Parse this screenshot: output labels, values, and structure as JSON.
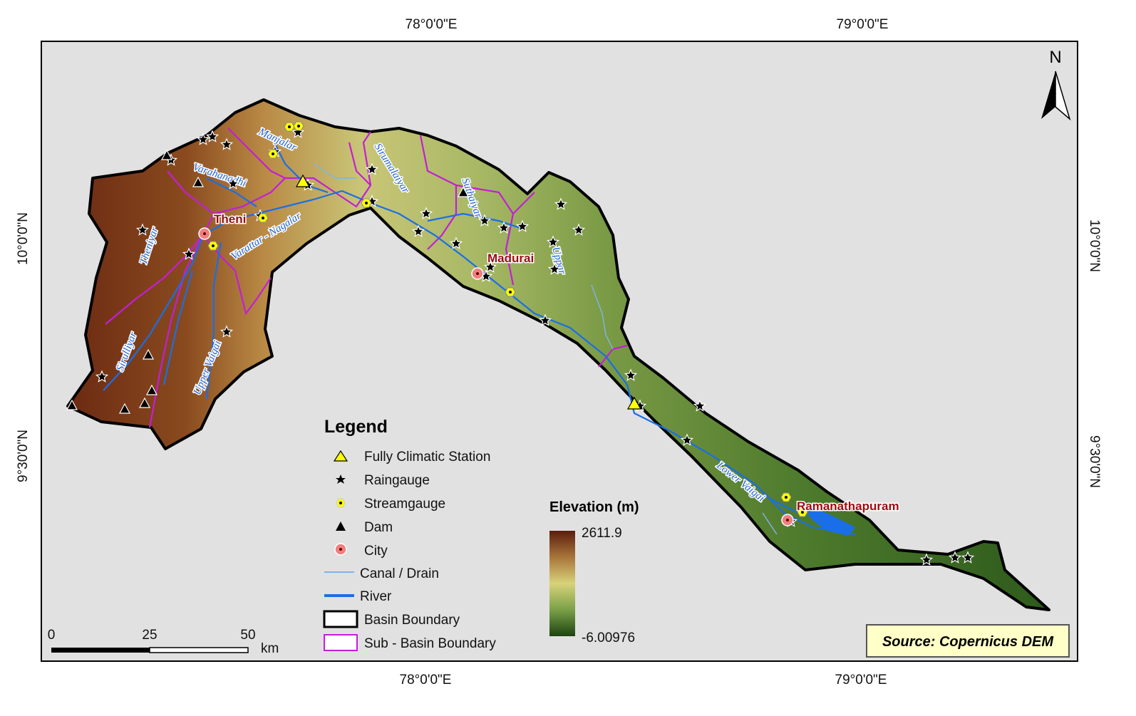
{
  "map": {
    "graticule": {
      "top": [
        "78°0'0\"E",
        "79°0'0\"E"
      ],
      "bottom": [
        "78°0'0\"E",
        "79°0'0\"E"
      ],
      "left": [
        "10°0'0\"N",
        "9°30'0\"N"
      ],
      "right": [
        "10°0'0\"N",
        "9°30'0\"N"
      ]
    },
    "north_arrow": "N",
    "cities": [
      "Theni",
      "Madurai",
      "Ramanathapuram"
    ],
    "rivers": [
      "Manjalar",
      "Varahanadhi",
      "Theniyar",
      "Varattar - Nagalar",
      "Sirumalaiyar",
      "Suthaiyar",
      "Uppar",
      "Sirulliyar",
      "Upper Vaigai",
      "Lower Vaigai"
    ],
    "legend": {
      "title": "Legend",
      "items": [
        "Fully Climatic Station",
        "Raingauge",
        "Streamgauge",
        "Dam",
        "City",
        "Canal / Drain",
        "River",
        "Basin Boundary",
        "Sub - Basin Boundary"
      ]
    },
    "elevation": {
      "title": "Elevation (m)",
      "max": "2611.9",
      "min": "-6.00976"
    },
    "scale_bar": {
      "ticks": [
        "0",
        "25",
        "50"
      ],
      "unit": "km"
    },
    "source": "Source: Copernicus DEM"
  }
}
